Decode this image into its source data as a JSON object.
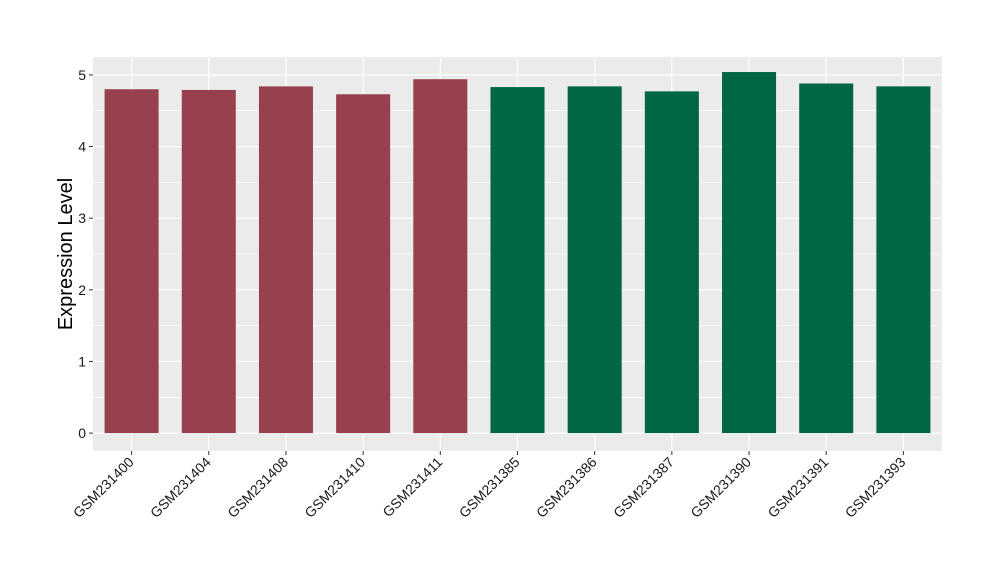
{
  "chart_data": {
    "type": "bar",
    "title": "",
    "xlabel": "",
    "ylabel": "Expression Level",
    "ylim": [
      -0.25,
      5.25
    ],
    "yticks": [
      0,
      1,
      2,
      3,
      4,
      5
    ],
    "grid": true,
    "legend": "none",
    "categories": [
      "GSM231400",
      "GSM231404",
      "GSM231408",
      "GSM231410",
      "GSM231411",
      "GSM231385",
      "GSM231386",
      "GSM231387",
      "GSM231390",
      "GSM231391",
      "GSM231393"
    ],
    "values": [
      4.8,
      4.79,
      4.84,
      4.73,
      4.94,
      4.83,
      4.84,
      4.77,
      5.04,
      4.88,
      4.84
    ],
    "bar_colors": [
      "#98414E",
      "#98414E",
      "#98414E",
      "#98414E",
      "#98414E",
      "#006644",
      "#006644",
      "#006644",
      "#006644",
      "#006644",
      "#006644"
    ]
  },
  "style": {
    "panel_background": "#EBEBEB",
    "grid_color": "#FFFFFF",
    "axis_tick_color": "#333333"
  }
}
